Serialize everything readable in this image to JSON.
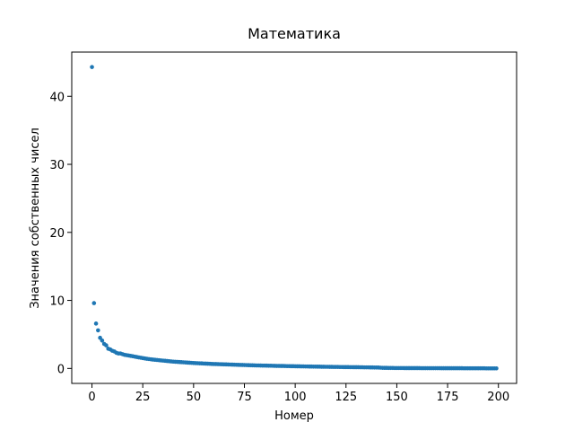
{
  "chart_data": {
    "type": "scatter",
    "title": "Математика",
    "x_label": "Номер",
    "y_label": "Значения собственных чисел",
    "color": "#1f77b4",
    "x": [
      0,
      1,
      2,
      3,
      4,
      5,
      6,
      7,
      8,
      9,
      10,
      11,
      12,
      13,
      14,
      15,
      16,
      17,
      18,
      19,
      20,
      21,
      22,
      23,
      24,
      25,
      26,
      27,
      28,
      29,
      30,
      31,
      32,
      33,
      34,
      35,
      36,
      37,
      38,
      39,
      40,
      41,
      42,
      43,
      44,
      45,
      46,
      47,
      48,
      49,
      50,
      51,
      52,
      53,
      54,
      55,
      56,
      57,
      58,
      59,
      60,
      61,
      62,
      63,
      64,
      65,
      66,
      67,
      68,
      69,
      70,
      71,
      72,
      73,
      74,
      75,
      76,
      77,
      78,
      79,
      80,
      81,
      82,
      83,
      84,
      85,
      86,
      87,
      88,
      89,
      90,
      91,
      92,
      93,
      94,
      95,
      96,
      97,
      98,
      99,
      100,
      101,
      102,
      103,
      104,
      105,
      106,
      107,
      108,
      109,
      110,
      111,
      112,
      113,
      114,
      115,
      116,
      117,
      118,
      119,
      120,
      121,
      122,
      123,
      124,
      125,
      126,
      127,
      128,
      129,
      130,
      131,
      132,
      133,
      134,
      135,
      136,
      137,
      138,
      139,
      140,
      141,
      142,
      143,
      144,
      145,
      146,
      147,
      148,
      149,
      150,
      151,
      152,
      153,
      154,
      155,
      156,
      157,
      158,
      159,
      160,
      161,
      162,
      163,
      164,
      165,
      166,
      167,
      168,
      169,
      170,
      171,
      172,
      173,
      174,
      175,
      176,
      177,
      178,
      179,
      180,
      181,
      182,
      183,
      184,
      185,
      186,
      187,
      188,
      189,
      190,
      191,
      192,
      193,
      194,
      195,
      196,
      197,
      198,
      199
    ],
    "values": [
      44.3,
      9.6,
      6.6,
      5.6,
      4.5,
      4.1,
      3.6,
      3.4,
      2.9,
      2.8,
      2.6,
      2.5,
      2.3,
      2.2,
      2.2,
      2.1,
      2.0,
      1.95,
      1.9,
      1.85,
      1.8,
      1.74,
      1.68,
      1.62,
      1.57,
      1.52,
      1.47,
      1.42,
      1.38,
      1.34,
      1.3,
      1.27,
      1.24,
      1.21,
      1.18,
      1.15,
      1.12,
      1.09,
      1.06,
      1.03,
      1.0,
      0.98,
      0.96,
      0.94,
      0.92,
      0.9,
      0.88,
      0.86,
      0.84,
      0.82,
      0.8,
      0.78,
      0.77,
      0.75,
      0.74,
      0.72,
      0.71,
      0.69,
      0.68,
      0.66,
      0.65,
      0.64,
      0.63,
      0.62,
      0.61,
      0.6,
      0.59,
      0.58,
      0.57,
      0.56,
      0.55,
      0.54,
      0.53,
      0.52,
      0.51,
      0.5,
      0.49,
      0.48,
      0.47,
      0.46,
      0.45,
      0.44,
      0.44,
      0.43,
      0.42,
      0.42,
      0.41,
      0.4,
      0.4,
      0.39,
      0.38,
      0.37,
      0.37,
      0.36,
      0.36,
      0.35,
      0.34,
      0.34,
      0.33,
      0.33,
      0.32,
      0.31,
      0.31,
      0.3,
      0.3,
      0.29,
      0.29,
      0.28,
      0.28,
      0.27,
      0.27,
      0.26,
      0.26,
      0.25,
      0.25,
      0.24,
      0.24,
      0.23,
      0.23,
      0.22,
      0.22,
      0.22,
      0.21,
      0.21,
      0.2,
      0.2,
      0.2,
      0.19,
      0.19,
      0.18,
      0.18,
      0.18,
      0.17,
      0.17,
      0.16,
      0.16,
      0.16,
      0.15,
      0.15,
      0.14,
      0.14,
      0.13,
      0.11,
      0.09,
      0.08,
      0.08,
      0.07,
      0.07,
      0.07,
      0.06,
      0.06,
      0.06,
      0.06,
      0.06,
      0.05,
      0.05,
      0.05,
      0.05,
      0.05,
      0.05,
      0.05,
      0.05,
      0.04,
      0.04,
      0.04,
      0.04,
      0.04,
      0.04,
      0.04,
      0.04,
      0.04,
      0.04,
      0.03,
      0.03,
      0.03,
      0.03,
      0.03,
      0.03,
      0.03,
      0.03,
      0.03,
      0.03,
      0.03,
      0.02,
      0.02,
      0.02,
      0.02,
      0.02,
      0.02,
      0.02,
      0.02,
      0.02,
      0.02,
      0.02,
      0.01,
      0.01,
      0.01,
      0.01,
      0.01,
      0.01
    ],
    "xlim": [
      -9.95,
      208.95
    ],
    "xticks": [
      0,
      25,
      50,
      75,
      100,
      125,
      150,
      175,
      200
    ],
    "ylim": [
      -2.2,
      46.5
    ],
    "yticks": [
      0,
      10,
      20,
      30,
      40
    ]
  }
}
